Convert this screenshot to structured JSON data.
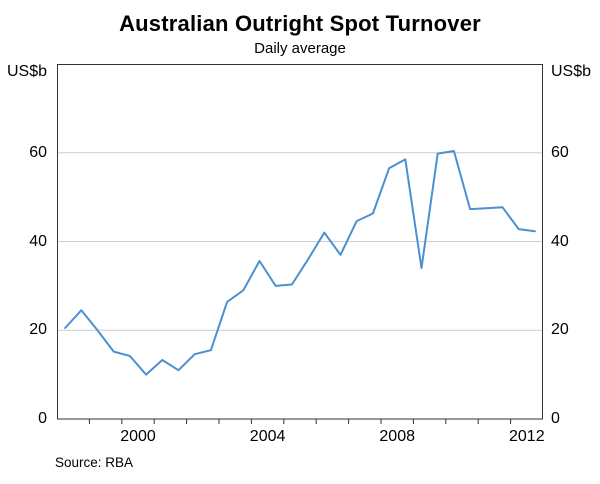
{
  "header": {
    "title": "Australian Outright Spot Turnover",
    "subtitle": "Daily average"
  },
  "axes": {
    "y_unit_left": "US$b",
    "y_unit_right": "US$b"
  },
  "footer": {
    "source": "Source: RBA"
  },
  "colors": {
    "line": "#4a90d2",
    "grid": "#cccccc",
    "axis": "#333333",
    "text": "#000000"
  },
  "chart_data": {
    "type": "line",
    "title": "Australian Outright Spot Turnover",
    "subtitle": "Daily average",
    "ylabel": "US$b",
    "xlim": [
      1998,
      2013
    ],
    "ylim": [
      0,
      80
    ],
    "yticks": [
      0,
      20,
      40,
      60
    ],
    "xtick_labels": [
      "2000",
      "2004",
      "2008",
      "2012"
    ],
    "xtick_label_years": [
      2000,
      2004,
      2008,
      2012
    ],
    "grid": "horizontal",
    "legend_position": "none",
    "source": "RBA",
    "series": [
      {
        "name": "Australian outright spot turnover (daily average, US$b)",
        "x": [
          1998.25,
          1998.75,
          1999.25,
          1999.75,
          2000.25,
          2000.75,
          2001.25,
          2001.75,
          2002.25,
          2002.75,
          2003.25,
          2003.75,
          2004.25,
          2004.75,
          2005.25,
          2005.75,
          2006.25,
          2006.75,
          2007.25,
          2007.75,
          2008.25,
          2008.75,
          2009.25,
          2009.75,
          2010.25,
          2010.75,
          2011.25,
          2011.75,
          2012.25,
          2012.75
        ],
        "values": [
          20.5,
          24.5,
          20,
          15.2,
          14.2,
          10,
          13.3,
          11,
          14.6,
          15.5,
          26.4,
          29,
          35.6,
          30,
          30.3,
          36,
          42,
          37,
          44.6,
          46.3,
          56.5,
          58.5,
          34,
          59.8,
          60.4,
          47.3,
          47.5,
          47.7,
          42.8,
          42.3
        ]
      }
    ]
  }
}
